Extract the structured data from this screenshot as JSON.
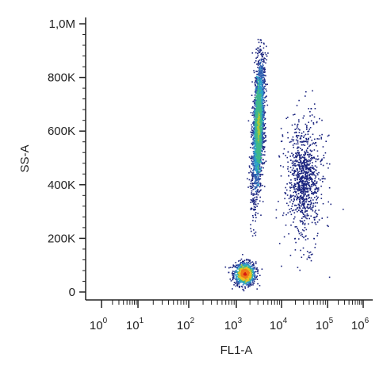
{
  "chart_data": {
    "type": "scatter",
    "subtype": "flow-cytometry density dot plot",
    "xlabel": "FL1-A",
    "ylabel": "SS-A",
    "x_scale": "log",
    "xlim": [
      1,
      1000000
    ],
    "ylim": [
      0,
      1000000
    ],
    "x_tick_labels": [
      {
        "base": "10",
        "exp": "0"
      },
      {
        "base": "10",
        "exp": "1"
      },
      {
        "base": "10",
        "exp": "2"
      },
      {
        "base": "10",
        "exp": "3"
      },
      {
        "base": "10",
        "exp": "4"
      },
      {
        "base": "10",
        "exp": "5"
      },
      {
        "base": "10",
        "exp": "6"
      }
    ],
    "y_ticks": [
      {
        "value": 0,
        "label": "0"
      },
      {
        "value": 200000,
        "label": "200K"
      },
      {
        "value": 400000,
        "label": "400K"
      },
      {
        "value": 600000,
        "label": "600K"
      },
      {
        "value": 800000,
        "label": "800K"
      },
      {
        "value": 1000000,
        "label": "1,0M"
      }
    ],
    "density_colormap": [
      "#1a237e",
      "#2f5fb0",
      "#2aa0c8",
      "#3fb98a",
      "#a8c83a",
      "#f0c020",
      "#f07818",
      "#d81c10"
    ],
    "populations": [
      {
        "name": "",
        "center_x": 1500,
        "center_y": 70000,
        "spread_log_x": 0.12,
        "spread_y": 22000,
        "points": 900,
        "peak_color": "#d81c10"
      },
      {
        "name": "",
        "center_x": 3000,
        "center_y": 620000,
        "spread_log_x": 0.06,
        "spread_y": 130000,
        "points": 2200,
        "peak_color": "#a8c83a"
      },
      {
        "name": "",
        "center_x": 30000,
        "center_y": 420000,
        "spread_log_x": 0.22,
        "spread_y": 120000,
        "points": 700,
        "peak_color": "#1a237e"
      }
    ],
    "grid": false
  }
}
